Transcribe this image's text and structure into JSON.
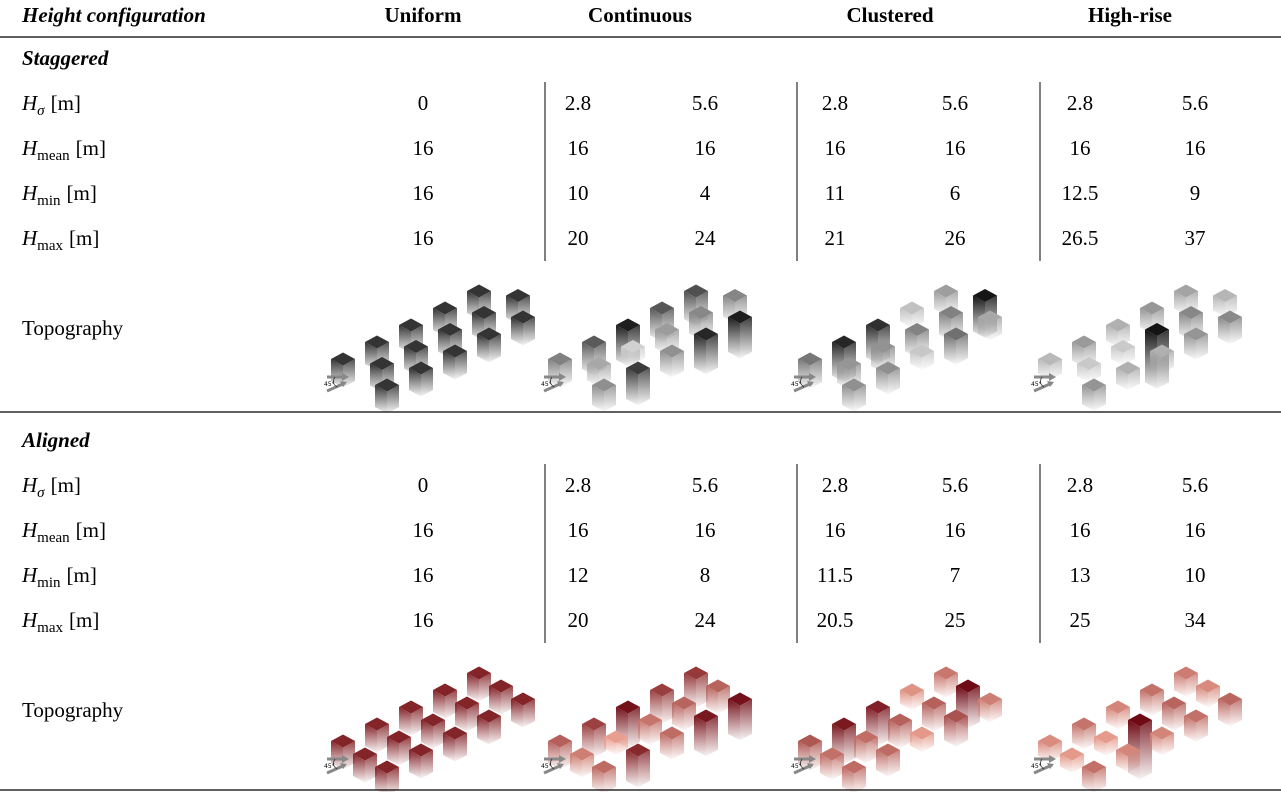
{
  "header": [
    "Height configuration",
    "Uniform",
    "Continuous",
    "Clustered",
    "High-rise"
  ],
  "arrow_label": "45°",
  "sections": [
    {
      "title": "Staggered",
      "topography_label": "Topography",
      "rows": [
        {
          "symbol": "H",
          "subscript": "σ",
          "unit": "[m]",
          "values": [
            0,
            2.8,
            5.6,
            2.8,
            5.6,
            2.8,
            5.6
          ]
        },
        {
          "symbol": "H",
          "subscript": "mean",
          "unit": "[m]",
          "values": [
            16,
            16,
            16,
            16,
            16,
            16,
            16
          ]
        },
        {
          "symbol": "H",
          "subscript": "min",
          "unit": "[m]",
          "values": [
            16,
            10,
            4,
            11,
            6,
            12.5,
            9
          ]
        },
        {
          "symbol": "H",
          "subscript": "max",
          "unit": "[m]",
          "values": [
            16,
            20,
            24,
            21,
            26,
            26.5,
            37
          ]
        }
      ]
    },
    {
      "title": "Aligned",
      "topography_label": "Topography",
      "rows": [
        {
          "symbol": "H",
          "subscript": "σ",
          "unit": "[m]",
          "values": [
            0,
            2.8,
            5.6,
            2.8,
            5.6,
            2.8,
            5.6
          ]
        },
        {
          "symbol": "H",
          "subscript": "mean",
          "unit": "[m]",
          "values": [
            16,
            16,
            16,
            16,
            16,
            16,
            16
          ]
        },
        {
          "symbol": "H",
          "subscript": "min",
          "unit": "[m]",
          "values": [
            16,
            12,
            8,
            11.5,
            7,
            13,
            10
          ]
        },
        {
          "symbol": "H",
          "subscript": "max",
          "unit": "[m]",
          "values": [
            16,
            20,
            24,
            20.5,
            25,
            25,
            34
          ]
        }
      ]
    }
  ]
}
